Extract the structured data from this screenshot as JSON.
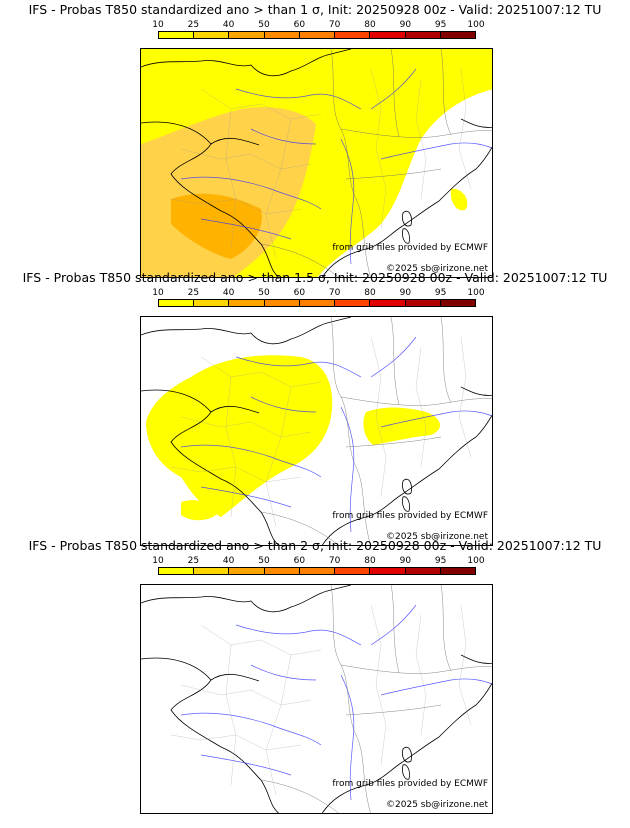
{
  "panels": [
    {
      "title": "IFS - Probas T850  standardized ano > than 1 σ, Init: 20250928 00z - Valid: 20251007:12 TU",
      "coverage": "high"
    },
    {
      "title": "IFS - Probas T850  standardized ano > than 1.5 σ, Init: 20250928 00z - Valid: 20251007:12 TU",
      "coverage": "medium"
    },
    {
      "title": "IFS - Probas T850  standardized ano > than 2 σ, Init: 20250928 00z - Valid: 20251007:12 TU",
      "coverage": "none"
    }
  ],
  "scale": {
    "labels": [
      "10",
      "25",
      "40",
      "50",
      "60",
      "70",
      "80",
      "90",
      "95",
      "100"
    ],
    "colors": [
      "#ffff00",
      "#ffd700",
      "#ffa500",
      "#ff8c00",
      "#ff7f00",
      "#ff4500",
      "#e00000",
      "#b00000",
      "#800000"
    ]
  },
  "credits": {
    "source": "from grib files provided by ECMWF",
    "copyright": "©2025 sb@irizone.net"
  }
}
